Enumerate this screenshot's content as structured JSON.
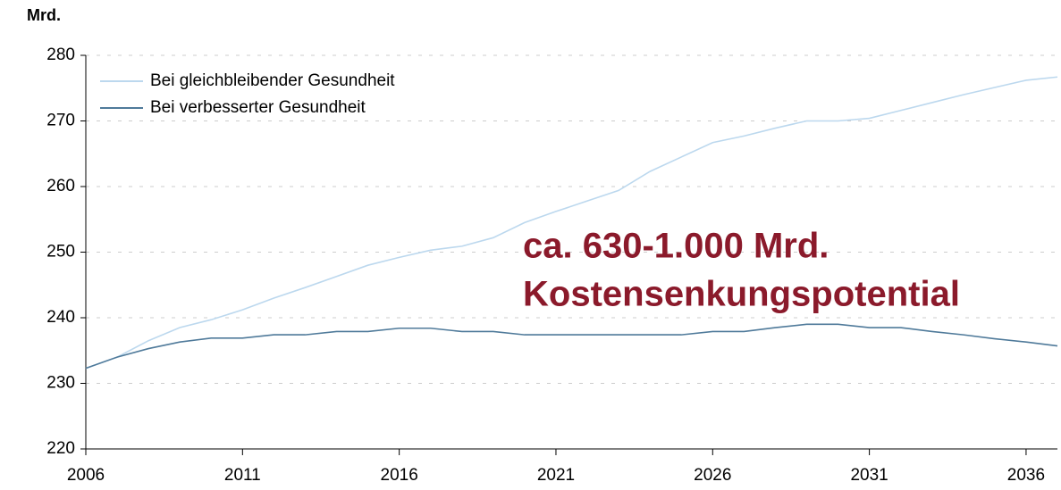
{
  "chart_data": {
    "type": "line",
    "ylabel": "Mrd.",
    "x": [
      2006,
      2007,
      2008,
      2009,
      2010,
      2011,
      2012,
      2013,
      2014,
      2015,
      2016,
      2017,
      2018,
      2019,
      2020,
      2021,
      2022,
      2023,
      2024,
      2025,
      2026,
      2027,
      2028,
      2029,
      2030,
      2031,
      2032,
      2033,
      2034,
      2035,
      2036,
      2037
    ],
    "series": [
      {
        "name": "Bei gleichbleibender Gesundheit",
        "color": "#bcd8ee",
        "values": [
          232.3,
          234,
          236.5,
          238.5,
          239.7,
          241.2,
          243,
          244.6,
          246.3,
          248,
          249.2,
          250.3,
          250.9,
          252.2,
          254.5,
          256.2,
          257.8,
          259.4,
          262.3,
          264.5,
          266.7,
          267.7,
          268.9,
          270,
          270,
          270.4,
          271.6,
          272.8,
          274,
          275.1,
          276.2,
          276.7
        ]
      },
      {
        "name": "Bei verbesserter Gesundheit",
        "color": "#4f7a9a",
        "values": [
          232.3,
          234,
          235.3,
          236.3,
          236.9,
          236.9,
          237.4,
          237.4,
          237.9,
          237.9,
          238.4,
          238.4,
          237.9,
          237.9,
          237.4,
          237.4,
          237.4,
          237.4,
          237.4,
          237.4,
          237.9,
          237.9,
          238.5,
          239,
          239,
          238.5,
          238.5,
          237.9,
          237.4,
          236.8,
          236.3,
          235.7
        ]
      }
    ],
    "xlim": [
      2006,
      2037
    ],
    "xticks": [
      2006,
      2011,
      2016,
      2021,
      2026,
      2031,
      2036
    ],
    "ylim": [
      220,
      280
    ],
    "yticks": [
      220,
      230,
      240,
      250,
      260,
      270,
      280
    ],
    "grid": true,
    "legend": "upper left",
    "annotations": [
      "ca. 630-1.000 Mrd.",
      "Kostensenkungspotential"
    ],
    "annotation_color": "#8b1a2b"
  }
}
